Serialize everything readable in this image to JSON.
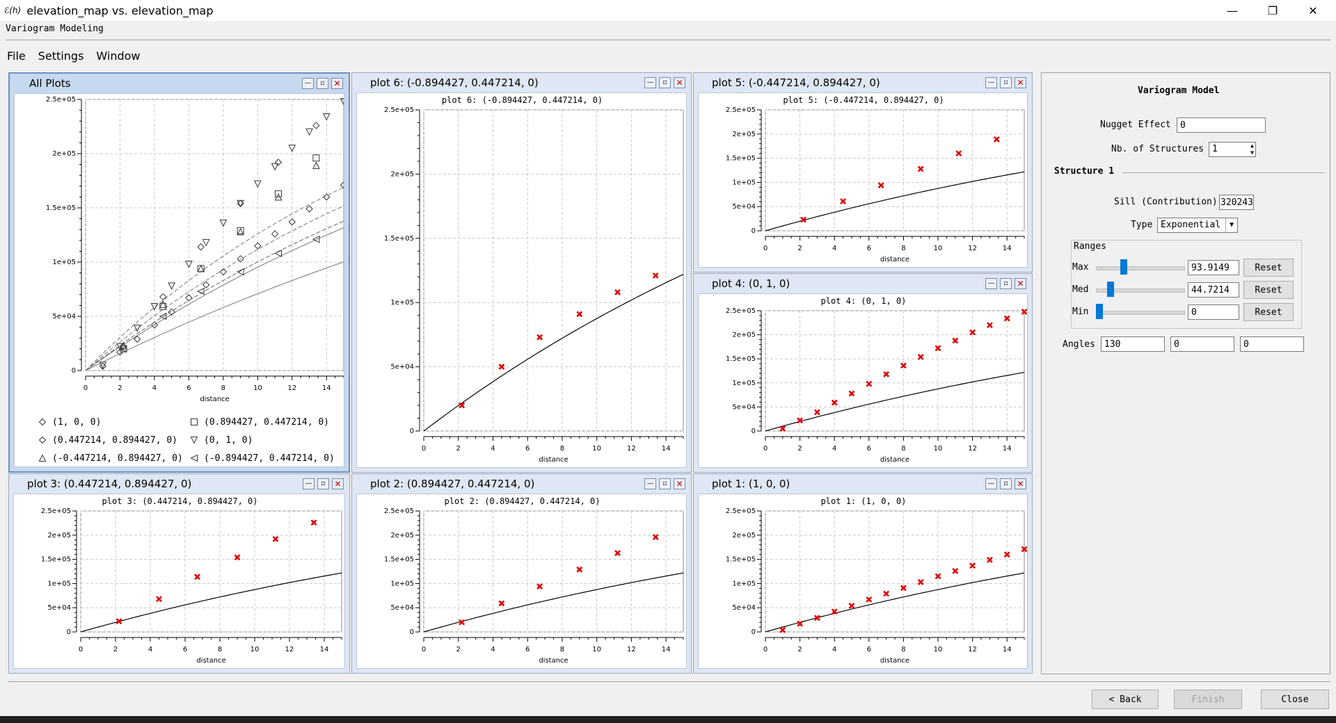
{
  "window": {
    "icon_text": "ℰ(ℎ)",
    "title": "elevation_map vs. elevation_map",
    "minimize": "—",
    "restore": "❐",
    "close": "✕"
  },
  "subtitle": "Variogram Modeling",
  "menu": [
    {
      "label": "File"
    },
    {
      "label": "Settings"
    },
    {
      "label": "Window"
    }
  ],
  "all_plots": {
    "title": "All Plots",
    "legend": [
      {
        "label": "(1, 0, 0)",
        "marker": "diamond"
      },
      {
        "label": "(0.894427, 0.447214, 0)",
        "marker": "square"
      },
      {
        "label": "(0.447214, 0.894427, 0)",
        "marker": "diamond2"
      },
      {
        "label": "(0, 1, 0)",
        "marker": "tri-down"
      },
      {
        "label": "(-0.447214, 0.894427, 0)",
        "marker": "tri-up"
      },
      {
        "label": "(-0.894427, 0.447214, 0)",
        "marker": "tri-left"
      }
    ]
  },
  "plots": [
    {
      "id": "plot6",
      "title": "plot 6:  (-0.894427, 0.447214, 0)",
      "inner_title": "plot 6:  (-0.894427, 0.447214, 0)"
    },
    {
      "id": "plot5",
      "title": "plot 5:  (-0.447214, 0.894427, 0)",
      "inner_title": "plot 5:  (-0.447214, 0.894427, 0)"
    },
    {
      "id": "plot4",
      "title": "plot 4:  (0, 1, 0)",
      "inner_title": "plot 4:  (0, 1, 0)"
    },
    {
      "id": "plot3",
      "title": "plot 3:  (0.447214, 0.894427, 0)",
      "inner_title": "plot 3:  (0.447214, 0.894427, 0)"
    },
    {
      "id": "plot2",
      "title": "plot 2:  (0.894427, 0.447214, 0)",
      "inner_title": "plot 2:  (0.894427, 0.447214, 0)"
    },
    {
      "id": "plot1",
      "title": "plot 1:  (1, 0, 0)",
      "inner_title": "plot 1:  (1, 0, 0)"
    }
  ],
  "chart_data": [
    {
      "name": "all-plots",
      "type": "line",
      "title": "",
      "xlabel": "distance",
      "ylabel": "",
      "xlim": [
        0,
        15
      ],
      "ylim": [
        0,
        250000
      ],
      "yticks": [
        "0",
        "5e+04",
        "1e+05",
        "1.5e+05",
        "2e+05",
        "2.5e+05"
      ],
      "xticks": [
        0,
        2,
        4,
        6,
        8,
        10,
        12,
        14
      ],
      "series": [
        {
          "name": "(1, 0, 0)",
          "marker": "diamond",
          "x": [
            1,
            2,
            3,
            4,
            5,
            6,
            7,
            8,
            9,
            10,
            11,
            12,
            13,
            14,
            15
          ],
          "y": [
            4000,
            17000,
            29000,
            42000,
            54000,
            67000,
            79000,
            91000,
            103000,
            115000,
            126000,
            137000,
            149000,
            160000,
            171000
          ]
        },
        {
          "name": "(0.894427, 0.447214, 0)",
          "marker": "square",
          "x": [
            2.2,
            4.5,
            6.7,
            9,
            11.2,
            13.4
          ],
          "y": [
            20000,
            59000,
            94000,
            129000,
            163000,
            196000
          ]
        },
        {
          "name": "(0.447214, 0.894427, 0)",
          "marker": "diamond2",
          "x": [
            2.2,
            4.5,
            6.7,
            9,
            11.2,
            13.4
          ],
          "y": [
            22000,
            68000,
            114000,
            154000,
            192000,
            226000
          ]
        },
        {
          "name": "(0, 1, 0)",
          "marker": "tri-down",
          "x": [
            1,
            2,
            3,
            4,
            5,
            6,
            7,
            8,
            9,
            10,
            11,
            12,
            13,
            14,
            15
          ],
          "y": [
            5000,
            22000,
            39000,
            59000,
            78000,
            98000,
            118000,
            136000,
            154000,
            172000,
            188000,
            205000,
            220000,
            234000,
            248000
          ]
        },
        {
          "name": "(-0.447214, 0.894427, 0)",
          "marker": "tri-up",
          "x": [
            2.2,
            4.5,
            6.7,
            9,
            11.2,
            13.4
          ],
          "y": [
            23000,
            61000,
            94000,
            128000,
            160000,
            189000
          ]
        },
        {
          "name": "(-0.894427, 0.447214, 0)",
          "marker": "tri-left",
          "x": [
            2.2,
            4.5,
            6.7,
            9,
            11.2,
            13.4
          ],
          "y": [
            20000,
            50000,
            73000,
            91000,
            108000,
            121000
          ]
        }
      ]
    },
    {
      "name": "plot6",
      "type": "scatter",
      "title": "plot 6:  (-0.894427, 0.447214, 0)",
      "xlabel": "distance",
      "ylabel": "",
      "xlim": [
        0,
        15
      ],
      "ylim": [
        0,
        250000
      ],
      "yticks": [
        "0",
        "5e+04",
        "1e+05",
        "1.5e+05",
        "2e+05",
        "2.5e+05"
      ],
      "xticks": [
        0,
        2,
        4,
        6,
        8,
        10,
        12,
        14
      ],
      "points": {
        "x": [
          2.2,
          4.5,
          6.7,
          9,
          11.2,
          13.4
        ],
        "y": [
          20000,
          50000,
          73000,
          91000,
          108000,
          121000
        ]
      }
    },
    {
      "name": "plot5",
      "type": "scatter",
      "title": "plot 5:  (-0.447214, 0.894427, 0)",
      "xlabel": "distance",
      "ylabel": "",
      "xlim": [
        0,
        15
      ],
      "ylim": [
        0,
        250000
      ],
      "yticks": [
        "0",
        "5e+04",
        "1e+05",
        "1.5e+05",
        "2e+05",
        "2.5e+05"
      ],
      "xticks": [
        0,
        2,
        4,
        6,
        8,
        10,
        12,
        14
      ],
      "points": {
        "x": [
          2.2,
          4.5,
          6.7,
          9,
          11.2,
          13.4
        ],
        "y": [
          23000,
          61000,
          94000,
          128000,
          160000,
          189000
        ]
      }
    },
    {
      "name": "plot4",
      "type": "scatter",
      "title": "plot 4:  (0, 1, 0)",
      "xlabel": "distance",
      "ylabel": "",
      "xlim": [
        0,
        15
      ],
      "ylim": [
        0,
        250000
      ],
      "yticks": [
        "0",
        "5e+04",
        "1e+05",
        "1.5e+05",
        "2e+05",
        "2.5e+05"
      ],
      "xticks": [
        0,
        2,
        4,
        6,
        8,
        10,
        12,
        14
      ],
      "points": {
        "x": [
          1,
          2,
          3,
          4,
          5,
          6,
          7,
          8,
          9,
          10,
          11,
          12,
          13,
          14,
          15
        ],
        "y": [
          5000,
          22000,
          39000,
          59000,
          78000,
          98000,
          118000,
          136000,
          154000,
          172000,
          188000,
          205000,
          220000,
          234000,
          248000
        ]
      }
    },
    {
      "name": "plot3",
      "type": "scatter",
      "title": "plot 3:  (0.447214, 0.894427, 0)",
      "xlabel": "distance",
      "ylabel": "",
      "xlim": [
        0,
        15
      ],
      "ylim": [
        0,
        250000
      ],
      "yticks": [
        "0",
        "5e+04",
        "1e+05",
        "1.5e+05",
        "2e+05",
        "2.5e+05"
      ],
      "xticks": [
        0,
        2,
        4,
        6,
        8,
        10,
        12,
        14
      ],
      "points": {
        "x": [
          2.2,
          4.5,
          6.7,
          9,
          11.2,
          13.4
        ],
        "y": [
          22000,
          68000,
          114000,
          154000,
          192000,
          226000
        ]
      }
    },
    {
      "name": "plot2",
      "type": "scatter",
      "title": "plot 2:  (0.894427, 0.447214, 0)",
      "xlabel": "distance",
      "ylabel": "",
      "xlim": [
        0,
        15
      ],
      "ylim": [
        0,
        250000
      ],
      "yticks": [
        "0",
        "5e+04",
        "1e+05",
        "1.5e+05",
        "2e+05",
        "2.5e+05"
      ],
      "xticks": [
        0,
        2,
        4,
        6,
        8,
        10,
        12,
        14
      ],
      "points": {
        "x": [
          2.2,
          4.5,
          6.7,
          9,
          11.2,
          13.4
        ],
        "y": [
          20000,
          59000,
          94000,
          129000,
          163000,
          196000
        ]
      }
    },
    {
      "name": "plot1",
      "type": "scatter",
      "title": "plot 1:  (1, 0, 0)",
      "xlabel": "distance",
      "ylabel": "",
      "xlim": [
        0,
        15
      ],
      "ylim": [
        0,
        250000
      ],
      "yticks": [
        "0",
        "5e+04",
        "1e+05",
        "1.5e+05",
        "2e+05",
        "2.5e+05"
      ],
      "xticks": [
        0,
        2,
        4,
        6,
        8,
        10,
        12,
        14
      ],
      "points": {
        "x": [
          1,
          2,
          3,
          4,
          5,
          6,
          7,
          8,
          9,
          10,
          11,
          12,
          13,
          14,
          15
        ],
        "y": [
          4000,
          17000,
          29000,
          42000,
          54000,
          67000,
          79000,
          91000,
          103000,
          115000,
          126000,
          137000,
          149000,
          160000,
          171000
        ]
      }
    }
  ],
  "model": {
    "heading": "Variogram Model",
    "nugget_label": "Nugget Effect",
    "nugget_value": "0",
    "nb_structures_label": "Nb. of Structures",
    "nb_structures_value": "1",
    "structure_heading": "Structure 1",
    "sill_label": "Sill (Contribution)",
    "sill_value": "320243",
    "type_label": "Type",
    "type_value": "Exponential",
    "ranges_label": "Ranges",
    "max_label": "Max",
    "max_value": "93.9149",
    "max_slider": 0.3,
    "med_label": "Med",
    "med_value": "44.7214",
    "med_slider": 0.14,
    "min_label": "Min",
    "min_value": "0",
    "min_slider": 0.0,
    "reset_label": "Reset",
    "angles_label": "Angles",
    "angle1": "130",
    "angle2": "0",
    "angle3": "0",
    "model_color": "#000000",
    "point_color": "#e00000"
  },
  "buttons": {
    "back": "< Back",
    "finish": "Finish",
    "close": "Close"
  }
}
